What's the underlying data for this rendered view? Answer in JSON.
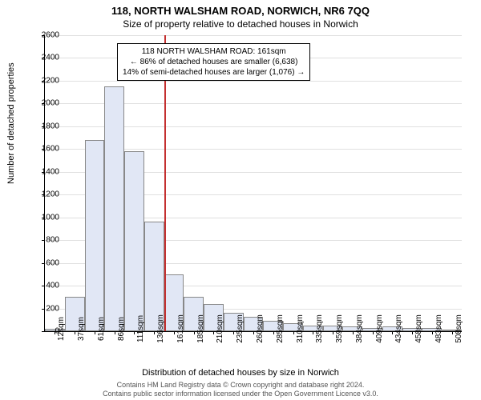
{
  "title": "118, NORTH WALSHAM ROAD, NORWICH, NR6 7QQ",
  "subtitle": "Size of property relative to detached houses in Norwich",
  "ylabel": "Number of detached properties",
  "xlabel": "Distribution of detached houses by size in Norwich",
  "footer_line1": "Contains HM Land Registry data © Crown copyright and database right 2024.",
  "footer_line2": "Contains public sector information licensed under the Open Government Licence v3.0.",
  "chart": {
    "type": "histogram",
    "ylim": [
      0,
      2600
    ],
    "ytick_step": 200,
    "background_color": "#ffffff",
    "grid_color": "#e0e0e0",
    "bar_fill": "#e1e7f5",
    "bar_border": "#888888",
    "categories": [
      "12sqm",
      "37sqm",
      "61sqm",
      "86sqm",
      "111sqm",
      "136sqm",
      "161sqm",
      "185sqm",
      "210sqm",
      "235sqm",
      "260sqm",
      "285sqm",
      "310sqm",
      "335sqm",
      "359sqm",
      "384sqm",
      "409sqm",
      "434sqm",
      "458sqm",
      "483sqm",
      "508sqm"
    ],
    "values": [
      20,
      300,
      1680,
      2150,
      1580,
      960,
      500,
      300,
      240,
      160,
      130,
      90,
      70,
      50,
      50,
      40,
      30,
      40,
      30,
      30,
      0
    ],
    "reference_index": 6,
    "reference_color": "#c43030",
    "annotation": {
      "line1": "118 NORTH WALSHAM ROAD: 161sqm",
      "line2": "← 86% of detached houses are smaller (6,638)",
      "line3": "14% of semi-detached houses are larger (1,076) →"
    },
    "tick_fontsize": 10,
    "label_fontsize": 11,
    "title_fontsize": 13
  }
}
